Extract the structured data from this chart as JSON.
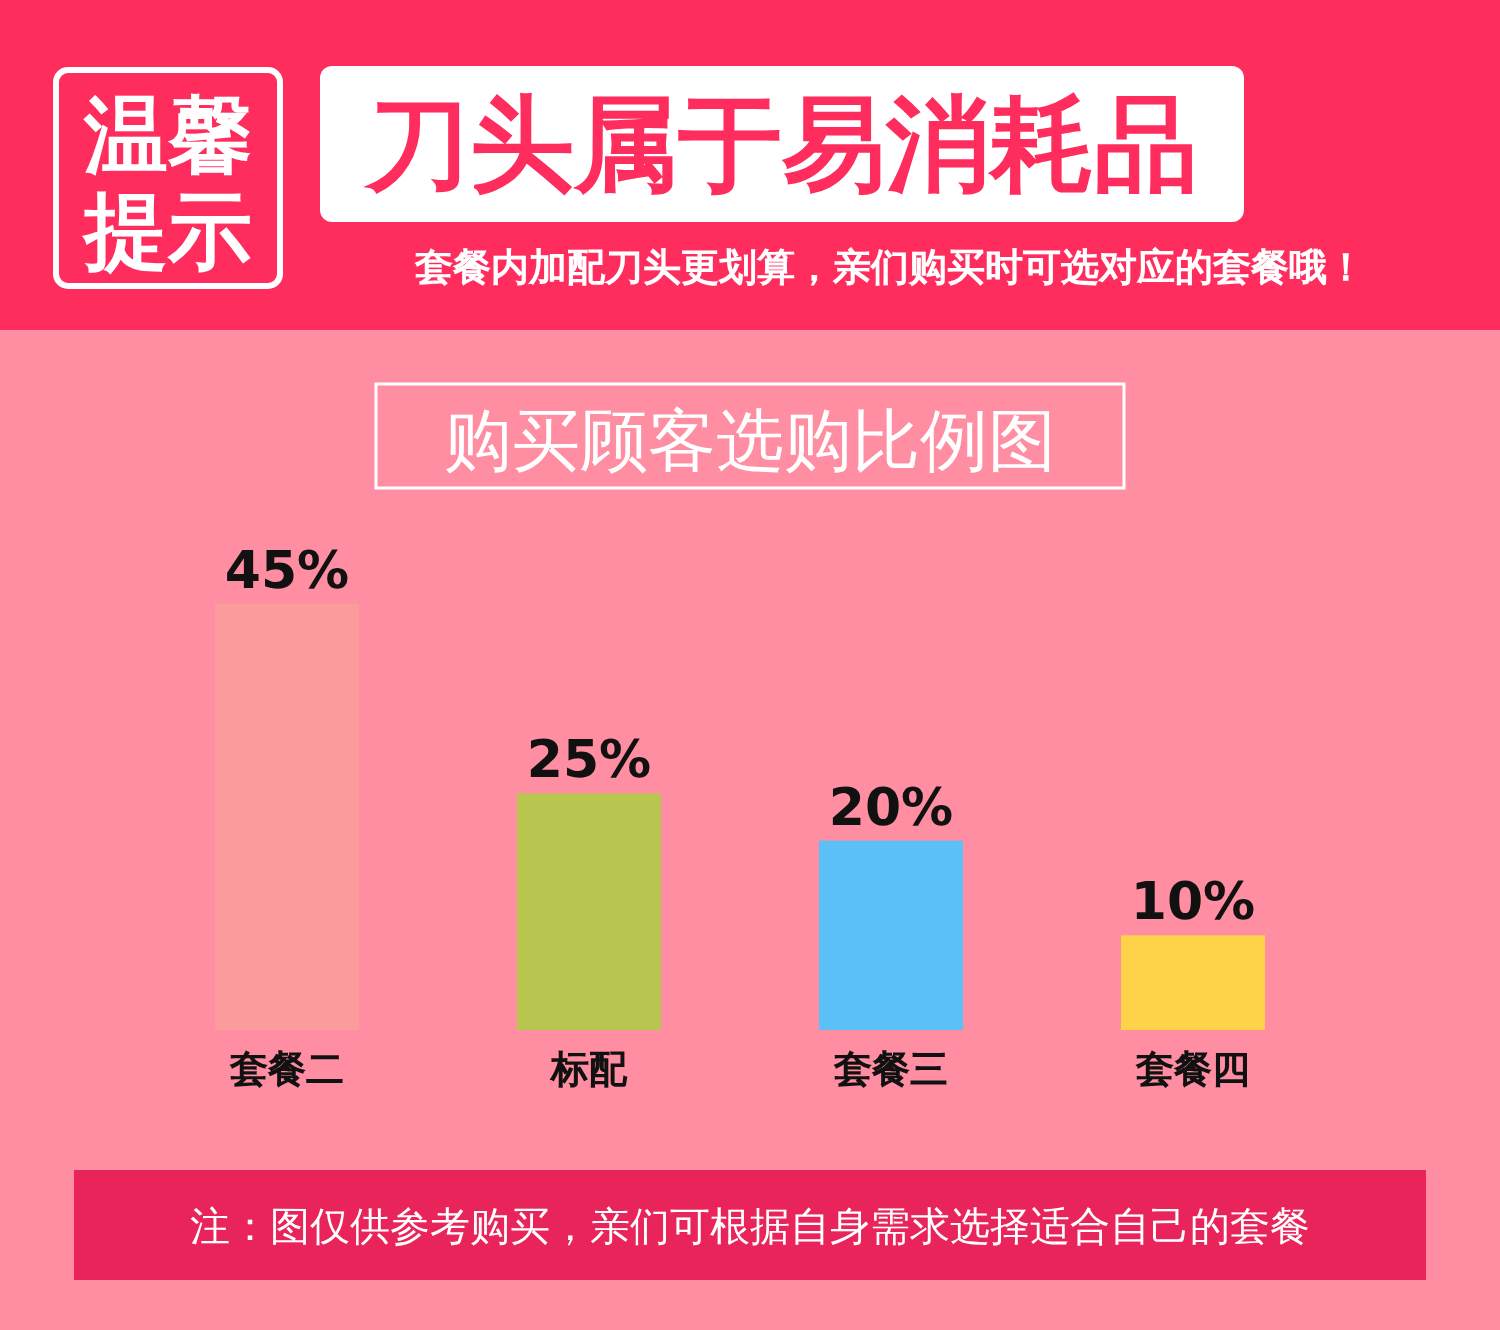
{
  "chart_data": {
    "type": "bar",
    "title": "购买顾客选购比例图",
    "categories": [
      "套餐二",
      "标配",
      "套餐三",
      "套餐四"
    ],
    "values": [
      45,
      25,
      20,
      10
    ],
    "colors": [
      "#fc9b9b",
      "#b8c54f",
      "#5bc0f8",
      "#fed349"
    ],
    "value_labels": [
      "45%",
      "25%",
      "20%",
      "10%"
    ],
    "annotations": [
      "温馨提示",
      "刀头属于易消耗品",
      "套餐内加配刀头更划算，亲们购买时可选对应的套餐哦！",
      "注：图仅供参考购买，亲们可根据自身需求选择适合自己的套餐"
    ]
  }
}
